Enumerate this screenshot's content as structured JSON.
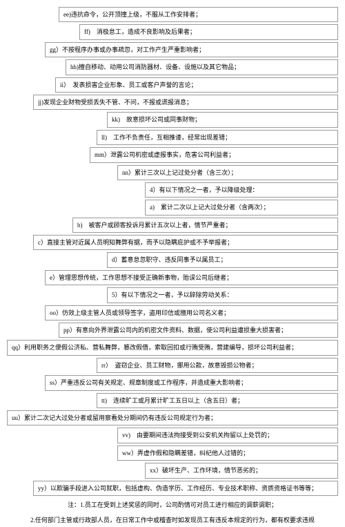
{
  "items": [
    {
      "cls": "ind0",
      "text": "ee)违抗命令，公开顶撞上级，不服从工作安排者；"
    },
    {
      "cls": "ind1",
      "text": "ff)　消极怠工，造成不良影响及后果者；"
    },
    {
      "cls": "ind2",
      "text": "gg）不按程序办事或办事疏忽，对工作产生严重影响者；"
    },
    {
      "cls": "ind3",
      "text": "hh)擅自移动、动用公司消防器材、设备、设施以及其它物品；"
    },
    {
      "cls": "ind4",
      "text": "ii）　发表损害企业形象、员工或客户声誉的言论；"
    },
    {
      "cls": "ind5",
      "text": "jj)发现企业财物受损丢失不管、不问，不报或谎报消息；"
    },
    {
      "cls": "ind6",
      "text": "kk)　故意损坏公司或同事财物；"
    },
    {
      "cls": "ind8",
      "text": "ll)　工作不负责任，互相推诿，经常出现差错；"
    },
    {
      "cls": "ind10",
      "text": "mm）泄露公司机密或虚报事实，危害公司利益者；"
    },
    {
      "cls": "ind11",
      "text": "nn）累计三次以上记过处分者（含三次）；"
    },
    {
      "cls": "ind7",
      "text": "4）有以下情况之一者，予以降级处理："
    },
    {
      "cls": "ind7",
      "text": "a)　累计二次以上记大过处分者（含两次）；"
    },
    {
      "cls": "ind9",
      "text": "b)　被客户或顾客投诉月累计五次以上者，情节严重者；"
    },
    {
      "cls": "ind5",
      "text": "c）直接主管对近属人员明知舞弊有据，而予以隐瞒庇护或不予举报者；"
    },
    {
      "cls": "ind6",
      "text": "d）蓄意怠忽职守、违反同事予以属员工；"
    },
    {
      "cls": "ind2",
      "text": "e）管理思想传统，工作思想不接受正确新事物，贻误公司后继者；"
    },
    {
      "cls": "ind6",
      "text": "5）有以下情况之一者，予以辞除劳动关系："
    },
    {
      "cls": "ind2",
      "text": "oo）仿效上级主管人员或领导签字，盗用印信或擅用公司名义者；"
    },
    {
      "cls": "ind0",
      "text": "pp）有意向外界泄露公司内的机密文件资料、数据，使公司利益遭损重大损害者；"
    },
    {
      "cls": "indfull",
      "text": "qq）利用职务之便假公济私、营私舞弊，篡改假借，索取回扣或行贿受贿，营建编导，损坏公司利益者；"
    },
    {
      "cls": "ind8",
      "text": "rr）　盗窃企业、员工财物，挪用公款，故意毁损公物者；"
    },
    {
      "cls": "ind2",
      "text": "ss）严重违反公司有关规定、规章制度或工作程序，并造成重大影响者；"
    },
    {
      "cls": "ind8",
      "text": "tt)　连续旷工或月累计旷工五日以上（含五日）者；"
    },
    {
      "cls": "indfull",
      "text": "uu）累计二次记大过处分者或留用察看处分期间仍有违反公司规定行为者；"
    },
    {
      "cls": "ind11",
      "text": "vv)　由要期间违法拘接受到公安机关拘留以上处罚的；"
    },
    {
      "cls": "ind11",
      "text": "ww）弄虚作假和隐瞒差错，纠纪他人过错的；"
    },
    {
      "cls": "ind7",
      "text": "xx）破坏生产、工作环境，情节恶劣的；"
    },
    {
      "cls": "ind5",
      "text": "yy）以欺骗手段进入公司就职，包括虚构、伪造学历、工作经历、专业技术职称、资质资格证书等等；"
    }
  ],
  "notes": [
    "注：1.员工在受到上述奖惩的同时，公司酌情可对员工进行相应的调薪调职；",
    "2.任何部门主管或行政部人员，在日常工作中或稽查时如发现员工有违反本规定的行为，都有权要求违规"
  ]
}
